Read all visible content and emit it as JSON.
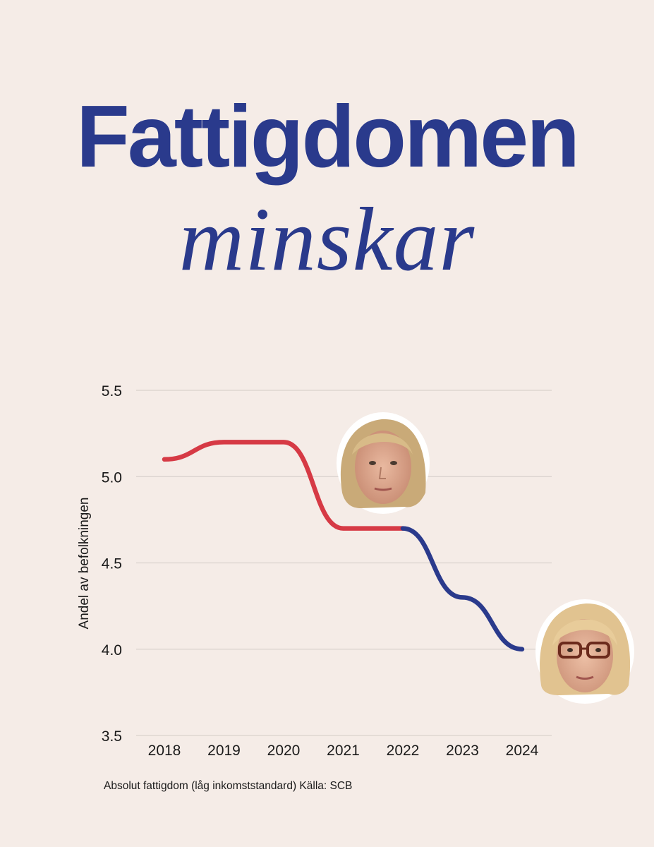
{
  "title": {
    "line1": "Fattigdomen",
    "line2": "minskar"
  },
  "colors": {
    "background": "#f5ece7",
    "title": "#2a3a8c",
    "series_before": "#d63a45",
    "series_after": "#2a3a8c",
    "grid": "#d9d1cc"
  },
  "chart_data": {
    "type": "line",
    "ylabel": "Andel av befolkningen",
    "xlabel": "",
    "ylim": [
      3.5,
      5.5
    ],
    "yticks": [
      "5.5",
      "5.0",
      "4.5",
      "4.0",
      "3.5"
    ],
    "categories": [
      "2018",
      "2019",
      "2020",
      "2021",
      "2022",
      "2023",
      "2024"
    ],
    "grid": "horizontal",
    "legend": "none",
    "series": [
      {
        "values": [
          5.1,
          5.2,
          5.2,
          4.7,
          4.7,
          null,
          null
        ],
        "color": "#d63a45"
      },
      {
        "values": [
          null,
          null,
          null,
          null,
          4.7,
          4.3,
          4.0
        ],
        "color": "#2a3a8c"
      }
    ],
    "annotations": [
      {
        "type": "portrait",
        "at": "2022",
        "icon": "portrait-woman-blonde"
      },
      {
        "type": "portrait",
        "at": "2024",
        "icon": "portrait-woman-glasses"
      }
    ]
  },
  "footnote": "Absolut fattigdom (låg inkomststandard) Källa: SCB"
}
